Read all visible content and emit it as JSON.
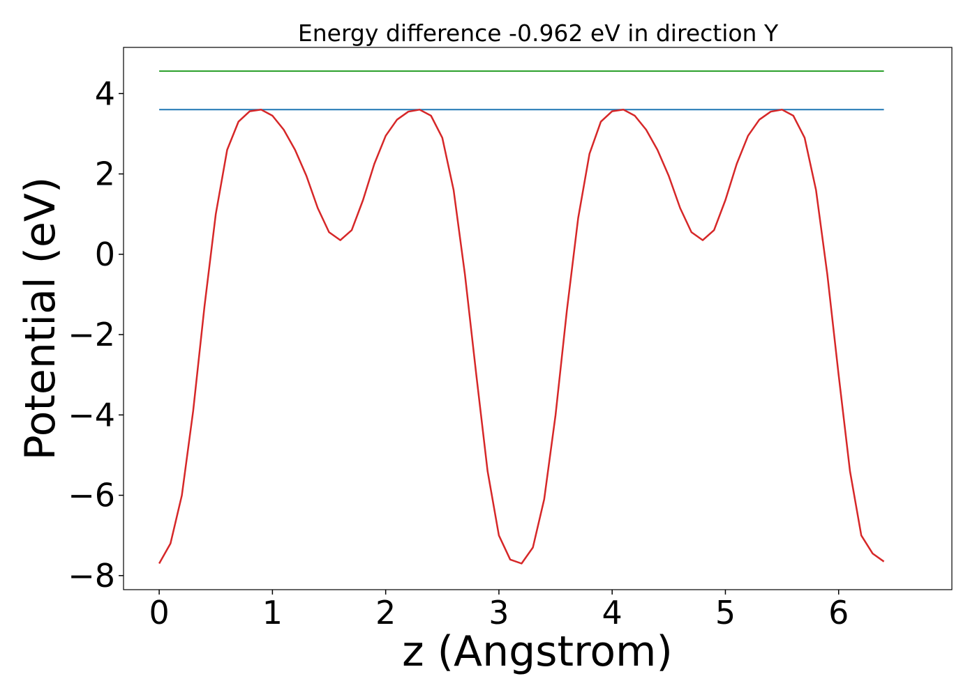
{
  "chart_data": {
    "type": "line",
    "title": "Energy difference -0.962 eV in direction Y",
    "xlabel": "z (Angstrom)",
    "ylabel": "Potential (eV)",
    "xlim": [
      -0.315,
      7.0
    ],
    "ylim": [
      -8.35,
      5.15
    ],
    "xticks": [
      0,
      1,
      2,
      3,
      4,
      5,
      6
    ],
    "xtick_labels": [
      "0",
      "1",
      "2",
      "3",
      "4",
      "5",
      "6"
    ],
    "yticks": [
      4,
      2,
      0,
      -2,
      -4,
      -6,
      -8
    ],
    "ytick_labels": [
      "4",
      "2",
      "0",
      "−2",
      "−4",
      "−6",
      "−8"
    ],
    "grid": false,
    "legend": "none",
    "series": [
      {
        "color": "#2ca02c",
        "x": [
          0,
          6.4
        ],
        "y": [
          4.56,
          4.56
        ]
      },
      {
        "color": "#1f77b4",
        "x": [
          0,
          6.4
        ],
        "y": [
          3.6,
          3.6
        ]
      },
      {
        "color": "#d62728",
        "x": [
          0,
          0.1,
          0.2,
          0.3,
          0.4,
          0.5,
          0.6,
          0.7,
          0.8,
          0.9,
          1.0,
          1.1,
          1.2,
          1.3,
          1.4,
          1.5,
          1.6,
          1.7,
          1.8,
          1.9,
          2.0,
          2.1,
          2.2,
          2.3,
          2.4,
          2.5,
          2.6,
          2.7,
          2.8,
          2.9,
          3.0,
          3.1,
          3.2,
          3.3,
          3.4,
          3.5,
          3.6,
          3.7,
          3.8,
          3.9,
          4.0,
          4.1,
          4.2,
          4.3,
          4.4,
          4.5,
          4.6,
          4.7,
          4.8,
          4.9,
          5.0,
          5.1,
          5.2,
          5.3,
          5.4,
          5.5,
          5.6,
          5.7,
          5.8,
          5.9,
          6.0,
          6.1,
          6.2,
          6.3,
          6.4
        ],
        "y": [
          -7.7,
          -7.2,
          -6.0,
          -3.9,
          -1.3,
          1.0,
          2.6,
          3.3,
          3.56,
          3.6,
          3.45,
          3.1,
          2.6,
          1.95,
          1.15,
          0.55,
          0.35,
          0.6,
          1.35,
          2.25,
          2.95,
          3.35,
          3.55,
          3.6,
          3.45,
          2.9,
          1.6,
          -0.5,
          -3.0,
          -5.4,
          -7.0,
          -7.6,
          -7.7,
          -7.3,
          -6.1,
          -4.0,
          -1.4,
          0.9,
          2.5,
          3.3,
          3.56,
          3.6,
          3.45,
          3.1,
          2.6,
          1.95,
          1.15,
          0.55,
          0.35,
          0.6,
          1.35,
          2.25,
          2.95,
          3.35,
          3.55,
          3.6,
          3.45,
          2.9,
          1.6,
          -0.5,
          -3.0,
          -5.4,
          -7.0,
          -7.45,
          -7.65
        ]
      }
    ]
  }
}
